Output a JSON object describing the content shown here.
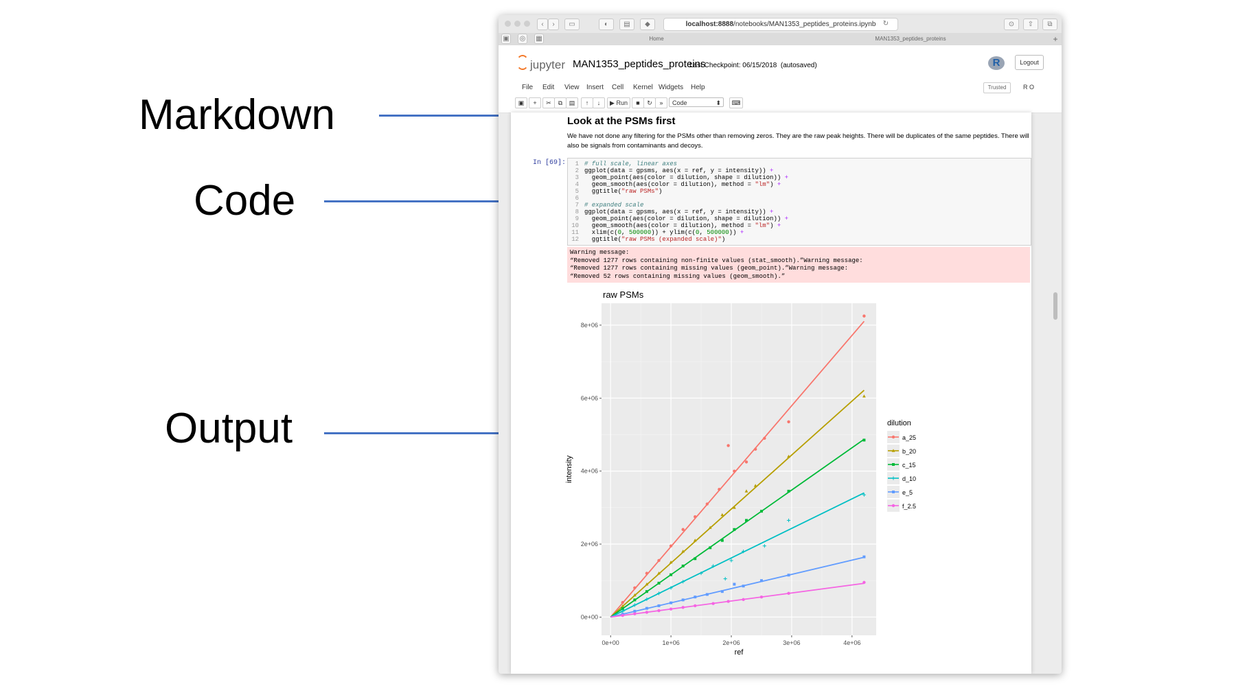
{
  "annotations": {
    "markdown": "Markdown",
    "code": "Code",
    "output": "Output"
  },
  "browser": {
    "url_host": "localhost:8888",
    "url_path": "/notebooks/MAN1353_peptides_proteins.ipynb",
    "tabs": [
      "Home",
      "MAN1353_peptides_proteins"
    ]
  },
  "jupyter": {
    "logo_text": "jupyter",
    "notebook_name": "MAN1353_peptides_proteins",
    "checkpoint": "Last Checkpoint: 06/15/2018",
    "autosaved": "(autosaved)",
    "kernel_logo": "R",
    "logout_label": "Logout",
    "menu": [
      "File",
      "Edit",
      "View",
      "Insert",
      "Cell",
      "Kernel",
      "Widgets",
      "Help"
    ],
    "trusted_label": "Trusted",
    "kernel_indicator": "R O",
    "run_label": "Run",
    "cell_type": "Code"
  },
  "markdown_cell": {
    "title": "Look at the PSMs first",
    "text": "We have not done any filtering for the PSMs other than removing zeros. They are the raw peak heights. There will be duplicates of the same peptides. There will also be signals from contaminants and decoys."
  },
  "code_cell": {
    "prompt": "In [69]:",
    "lines": [
      {
        "n": "1",
        "html": "<span class=\"cm\"># full scale, linear axes</span>"
      },
      {
        "n": "2",
        "html": "ggplot(data = gpsms, aes(x = ref, y = intensity)) <span class=\"op\">+</span>"
      },
      {
        "n": "3",
        "html": "  geom_point(aes(color = dilution, shape = dilution)) <span class=\"op\">+</span>"
      },
      {
        "n": "4",
        "html": "  geom_smooth(aes(color = dilution), method = <span class=\"st\">\"lm\"</span>) <span class=\"op\">+</span>"
      },
      {
        "n": "5",
        "html": "  ggtitle(<span class=\"st\">\"raw PSMs\"</span>)"
      },
      {
        "n": "6",
        "html": ""
      },
      {
        "n": "7",
        "html": "<span class=\"cm\"># expanded scale</span>"
      },
      {
        "n": "8",
        "html": "ggplot(data = gpsms, aes(x = ref, y = intensity)) <span class=\"op\">+</span>"
      },
      {
        "n": "9",
        "html": "  geom_point(aes(color = dilution, shape = dilution)) <span class=\"op\">+</span>"
      },
      {
        "n": "10",
        "html": "  geom_smooth(aes(color = dilution), method = <span class=\"st\">\"lm\"</span>) <span class=\"op\">+</span>"
      },
      {
        "n": "11",
        "html": "  xlim(c(<span class=\"nm\">0</span>, <span class=\"nm\">500000</span>)) + ylim(c(<span class=\"nm\">0</span>, <span class=\"nm\">500000</span>)) <span class=\"op\">+</span>"
      },
      {
        "n": "12",
        "html": "  ggtitle(<span class=\"st\">\"raw PSMs (expanded scale)\"</span>)"
      }
    ]
  },
  "warning": [
    "Warning message:",
    "“Removed 1277 rows containing non-finite values (stat_smooth).”Warning message:",
    "“Removed 1277 rows containing missing values (geom_point).”Warning message:",
    "“Removed 52 rows containing missing values (geom_smooth).”"
  ],
  "chart_data": {
    "type": "scatter",
    "title": "raw PSMs",
    "xlabel": "ref",
    "ylabel": "intensity",
    "xlim": [
      -150000,
      4400000
    ],
    "ylim": [
      -500000,
      8600000
    ],
    "xticks": [
      0,
      1000000,
      2000000,
      3000000,
      4000000
    ],
    "xticklabels": [
      "0e+00",
      "1e+06",
      "2e+06",
      "3e+06",
      "4e+06"
    ],
    "yticks": [
      0,
      2000000,
      4000000,
      6000000,
      8000000
    ],
    "yticklabels": [
      "0e+00",
      "2e+06",
      "4e+06",
      "6e+06",
      "8e+06"
    ],
    "grid": true,
    "legend": {
      "title": "dilution",
      "position": "right"
    },
    "series": [
      {
        "name": "a_25",
        "color": "#f8766d",
        "shape": "circle",
        "slope": 1.93,
        "points": [
          [
            200000,
            400000
          ],
          [
            400000,
            800000
          ],
          [
            600000,
            1200000
          ],
          [
            800000,
            1550000
          ],
          [
            1000000,
            1950000
          ],
          [
            1200000,
            2400000
          ],
          [
            1400000,
            2750000
          ],
          [
            1600000,
            3100000
          ],
          [
            1800000,
            3500000
          ],
          [
            1950000,
            4700000
          ],
          [
            2050000,
            4000000
          ],
          [
            2250000,
            4250000
          ],
          [
            2400000,
            4600000
          ],
          [
            2550000,
            4900000
          ],
          [
            2950000,
            5350000
          ],
          [
            4200000,
            8250000
          ]
        ]
      },
      {
        "name": "b_20",
        "color": "#b79f00",
        "shape": "triangle",
        "slope": 1.48,
        "points": [
          [
            200000,
            300000
          ],
          [
            400000,
            600000
          ],
          [
            600000,
            900000
          ],
          [
            800000,
            1200000
          ],
          [
            1000000,
            1500000
          ],
          [
            1200000,
            1800000
          ],
          [
            1400000,
            2100000
          ],
          [
            1650000,
            2450000
          ],
          [
            1850000,
            2800000
          ],
          [
            2050000,
            3000000
          ],
          [
            2250000,
            3450000
          ],
          [
            2400000,
            3600000
          ],
          [
            2950000,
            4400000
          ],
          [
            4200000,
            6050000
          ]
        ]
      },
      {
        "name": "c_15",
        "color": "#00ba38",
        "shape": "square",
        "slope": 1.16,
        "points": [
          [
            200000,
            230000
          ],
          [
            400000,
            470000
          ],
          [
            600000,
            700000
          ],
          [
            800000,
            930000
          ],
          [
            1000000,
            1160000
          ],
          [
            1200000,
            1400000
          ],
          [
            1400000,
            1600000
          ],
          [
            1650000,
            1900000
          ],
          [
            1850000,
            2100000
          ],
          [
            2050000,
            2400000
          ],
          [
            2250000,
            2650000
          ],
          [
            2500000,
            2900000
          ],
          [
            2950000,
            3450000
          ],
          [
            4200000,
            4850000
          ]
        ]
      },
      {
        "name": "d_10",
        "color": "#00bfc4",
        "shape": "plus",
        "slope": 0.81,
        "points": [
          [
            200000,
            160000
          ],
          [
            400000,
            330000
          ],
          [
            600000,
            490000
          ],
          [
            800000,
            650000
          ],
          [
            1000000,
            800000
          ],
          [
            1200000,
            970000
          ],
          [
            1500000,
            1200000
          ],
          [
            1700000,
            1400000
          ],
          [
            1900000,
            1050000
          ],
          [
            2000000,
            1550000
          ],
          [
            2200000,
            1800000
          ],
          [
            2550000,
            1950000
          ],
          [
            2950000,
            2650000
          ],
          [
            4200000,
            3350000
          ]
        ]
      },
      {
        "name": "e_5",
        "color": "#619cff",
        "shape": "square",
        "slope": 0.39,
        "points": [
          [
            200000,
            80000
          ],
          [
            400000,
            160000
          ],
          [
            600000,
            240000
          ],
          [
            800000,
            310000
          ],
          [
            1000000,
            390000
          ],
          [
            1200000,
            470000
          ],
          [
            1400000,
            550000
          ],
          [
            1600000,
            620000
          ],
          [
            1850000,
            700000
          ],
          [
            2050000,
            900000
          ],
          [
            2200000,
            850000
          ],
          [
            2500000,
            1000000
          ],
          [
            2950000,
            1150000
          ],
          [
            4200000,
            1650000
          ]
        ]
      },
      {
        "name": "f_2.5",
        "color": "#f564e3",
        "shape": "circle",
        "slope": 0.22,
        "points": [
          [
            200000,
            45000
          ],
          [
            400000,
            90000
          ],
          [
            600000,
            130000
          ],
          [
            800000,
            175000
          ],
          [
            1000000,
            220000
          ],
          [
            1200000,
            265000
          ],
          [
            1400000,
            310000
          ],
          [
            1700000,
            370000
          ],
          [
            1950000,
            430000
          ],
          [
            2200000,
            480000
          ],
          [
            2500000,
            550000
          ],
          [
            2950000,
            650000
          ],
          [
            4200000,
            950000
          ]
        ]
      }
    ]
  }
}
